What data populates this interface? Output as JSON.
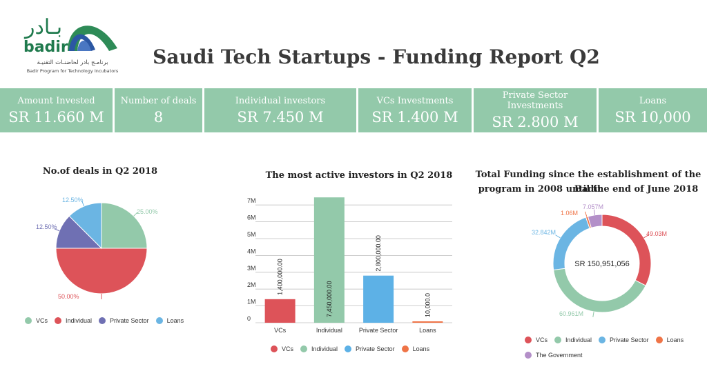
{
  "logo": {
    "ar_word": "بـادر",
    "en_word": "badir",
    "ar_sub": "برنامـج بادر لحاضنـات التقنيـة",
    "en_sub": "Badir Program for Technology Incubators",
    "colors": {
      "green": "#2e8b57",
      "blue": "#2b57a3"
    }
  },
  "title": "Saudi Tech Startups - Funding Report Q2",
  "kpis": [
    {
      "label": "Amount Invested",
      "value": "SR 11.660 M"
    },
    {
      "label": "Number of deals",
      "value": "8"
    },
    {
      "label": "Individual investors",
      "value": "SR 7.450 M"
    },
    {
      "label": "VCs Investments",
      "value": "SR 1.400 M"
    },
    {
      "label": "Private Sector Investments",
      "value": "SR 2.800 M"
    },
    {
      "label": "Loans",
      "value": "SR 10,000"
    }
  ],
  "colors": {
    "vcs": "#dd5359",
    "individual": "#93c9aa",
    "private_sector": "#6f70b3",
    "loans": "#6bb5e3",
    "loans_bar": "#ef7447",
    "private_sector_bar": "#5db1e6",
    "government": "#b38fc8",
    "kpi_bg": "#93c9aa"
  },
  "chart_data": [
    {
      "type": "pie",
      "title": "No.of deals  in Q2 2018",
      "categories": [
        "VCs",
        "Individual",
        "Private Sector",
        "Loans"
      ],
      "values": [
        25.0,
        50.0,
        12.5,
        12.5
      ],
      "labels": [
        "25.00%",
        "50.00%",
        "12.50%",
        "12.50%"
      ],
      "legend": [
        "VCs",
        "Individual",
        "Private Sector",
        "Loans"
      ]
    },
    {
      "type": "bar",
      "title": "The most active investors  in Q2 2018",
      "categories": [
        "VCs",
        "Individual",
        "Private Sector",
        "Loans"
      ],
      "values": [
        1400000,
        7450000,
        2800000,
        10000
      ],
      "data_labels": [
        "1,400,000.00",
        "7,450,000.00",
        "2,800,000.00",
        "10,000.0"
      ],
      "yticks": [
        0,
        1000000,
        2000000,
        3000000,
        4000000,
        5000000,
        6000000,
        7000000
      ],
      "ytick_labels": [
        "0",
        "1M",
        "2M",
        "3M",
        "4M",
        "5M",
        "6M",
        "7M"
      ],
      "ylim": [
        0,
        7500000
      ],
      "legend": [
        "VCs",
        "Individual",
        "Private Sector",
        "Loans"
      ]
    },
    {
      "type": "pie",
      "variant": "donut",
      "title_line1": "Total Funding since the establishment of the Badir",
      "title_line2": "program in 2008 until the end of June 2018",
      "center_label": "SR 150,951,056",
      "categories": [
        "VCs",
        "Individual",
        "Private Sector",
        "Loans",
        "The Government"
      ],
      "values": [
        49.03,
        60.961,
        32.842,
        1.06,
        7.057
      ],
      "labels": [
        "49.03M",
        "60.961M",
        "32.842M",
        "1.06M",
        "7.057M"
      ],
      "legend": [
        "VCs",
        "Individual",
        "Private Sector",
        "Loans",
        "The Government"
      ]
    }
  ]
}
